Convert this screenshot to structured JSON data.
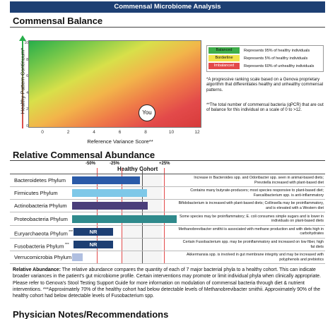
{
  "banner": "Commensal Microbiome Analysis",
  "balance": {
    "title": "Commensal Balance",
    "ylabel": "Healthy-Pattern Continuum*",
    "xlabel": "Reference Variance Score**",
    "you_label": "You",
    "yticks": [
      "10",
      "8",
      "6",
      "4",
      "2",
      "0"
    ],
    "xticks": [
      "0",
      "2",
      "4",
      "6",
      "8",
      "10",
      "12"
    ],
    "legend": [
      {
        "label": "Balanced",
        "desc": "Represents 95% of healthy individuals",
        "color": "#3fae4a"
      },
      {
        "label": "Borderline",
        "desc": "Represents 5% of healthy individuals",
        "color": "#f2e34a"
      },
      {
        "label": "Imbalanced",
        "desc": "Represents 60% of unhealthy individuals",
        "color": "#e34a4a"
      }
    ],
    "note1": "*A progressive ranking scale based on a Genova proprietary algorithm that differentiates healthy and unhealthy commensal patterns.",
    "note2": "**The total number of commensal bacteria (qPCR) that are out of balance for this individual on a scale of 0 to >12."
  },
  "abundance": {
    "title": "Relative Commensal Abundance",
    "scale": [
      "-50%",
      "-25%",
      "+25%"
    ],
    "healthy_cohort": "Healthy Cohort",
    "nr": "NR",
    "rows": [
      {
        "name": "Bacteroidetes Phylum",
        "sup": "",
        "value": -0.02,
        "color": "#2a5aa8",
        "desc": "Increase in Bacteroides spp. and Odoribacter spp. seen in animal-based diets; Prevotella increased with plant-based diet"
      },
      {
        "name": "Firmicutes Phylum",
        "sup": "",
        "value": 0.05,
        "color": "#7ec8e8",
        "desc": "Contains many butyrate-producers; most species responsive to plant-based diet; Faecalibacterium spp. is anti-inflammatory"
      },
      {
        "name": "Actinobacteria Phylum",
        "sup": "",
        "value": 0.06,
        "color": "#4a3e7a",
        "desc": "Bifidobacterium is increased with plant-based diets; Collinsella may be proinflammatory, and is elevated with a Western diet"
      },
      {
        "name": "Proteobacteria Phylum",
        "sup": "",
        "value": 0.35,
        "color": "#2f8a8c",
        "desc": "Some species may be proinflammatory; E. coli consumes simple sugars and is lower in individuals on plant-based diets"
      },
      {
        "name": "Euryarchaeota Phylum",
        "sup": "***",
        "value": null,
        "color": "#1d3f73",
        "desc": "Methanobrevibacter smithii is associated with methane production and with diets high in carbohydrates"
      },
      {
        "name": "Fusobacteria Phylum",
        "sup": "***",
        "value": null,
        "color": "#1d3f73",
        "desc": "Certain Fusobacterium spp. may be proinflammatory and increased on low fiber, high fat diets"
      },
      {
        "name": "Verrucomicrobia Phylum",
        "sup": "",
        "value": -0.6,
        "color": "#b0bfe0",
        "desc": "Akkermansia spp. is involved in gut membrane integrity and may be increased with polyphenols and prebiotics"
      }
    ]
  },
  "footer": {
    "bold": "Relative Abundance:",
    "text": " The relative abundance compares the quantity of each of 7 major bacterial phyla to a healthy cohort. This can indicate broader variances in the patient's gut microbiome profile. Certain interventions may promote or limit individual phyla when clinically appropriate. Please refer to Genova's Stool Testing Support Guide for more information on modulation of commensal bacteria through diet & nutrient interventions.  ***Approximately 70% of the healthy cohort had below detectable levels of Methanobrevibacter smithii. Approximately 90% of the healthy cohort had below detectable levels of Fusobacterium spp."
  },
  "notes_title": "Physician Notes/Recommendations"
}
